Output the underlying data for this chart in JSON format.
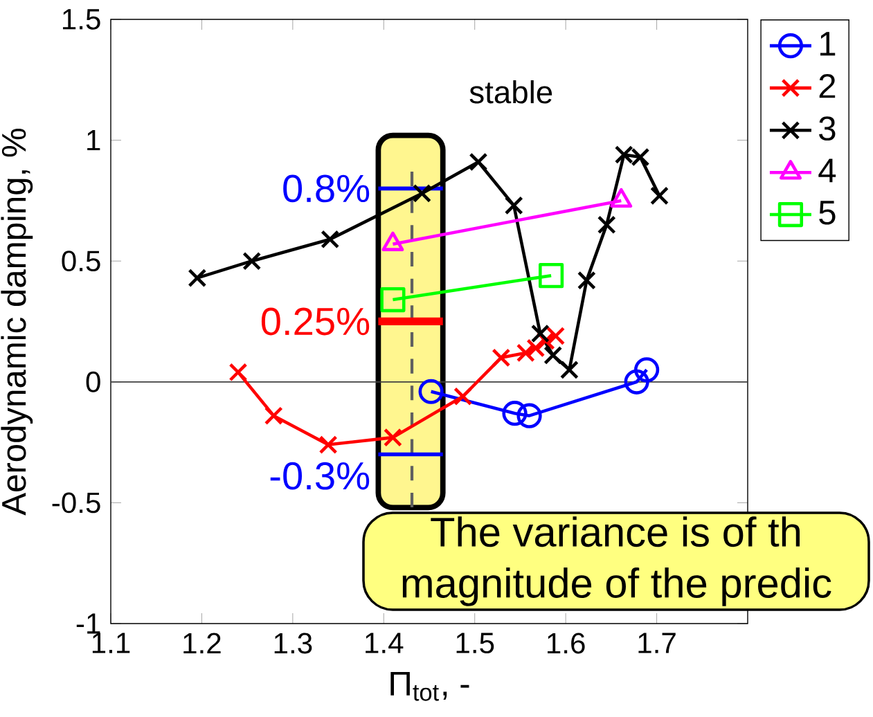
{
  "chart_data": {
    "type": "line",
    "xlabel": "Π$_{tot}$, -",
    "ylabel": "Aerodynamic damping, %",
    "xlim": [
      1.1,
      1.8
    ],
    "ylim": [
      -1,
      1.5
    ],
    "xticks": [
      1.1,
      1.2,
      1.3,
      1.4,
      1.5,
      1.6,
      1.7
    ],
    "yticks": [
      -1,
      -0.5,
      0,
      0.5,
      1,
      1.5
    ],
    "legend": "top right",
    "grid": false,
    "series": [
      {
        "name": "1",
        "color": "#0000ff",
        "marker": "circle",
        "x": [
          1.452,
          1.544,
          1.56,
          1.678,
          1.689
        ],
        "values": [
          -0.04,
          -0.13,
          -0.14,
          0.0,
          0.05
        ]
      },
      {
        "name": "2",
        "color": "#ff0000",
        "marker": "cross",
        "x": [
          1.24,
          1.279,
          1.339,
          1.41,
          1.487,
          1.529,
          1.556,
          1.567,
          1.578,
          1.589
        ],
        "values": [
          0.04,
          -0.14,
          -0.26,
          -0.23,
          -0.06,
          0.1,
          0.12,
          0.14,
          0.17,
          0.19
        ]
      },
      {
        "name": "3",
        "color": "#000000",
        "marker": "cross",
        "x": [
          1.195,
          1.255,
          1.341,
          1.442,
          1.504,
          1.543,
          1.572,
          1.586,
          1.604,
          1.623,
          1.645,
          1.664,
          1.682,
          1.703
        ],
        "values": [
          0.43,
          0.5,
          0.59,
          0.78,
          0.91,
          0.73,
          0.2,
          0.11,
          0.05,
          0.42,
          0.65,
          0.94,
          0.93,
          0.77
        ]
      },
      {
        "name": "4",
        "color": "#ff00ff",
        "marker": "triangle",
        "x": [
          1.41,
          1.661
        ],
        "values": [
          0.57,
          0.75
        ]
      },
      {
        "name": "5",
        "color": "#00ff00",
        "marker": "square",
        "x": [
          1.41,
          1.584
        ],
        "values": [
          0.34,
          0.44
        ]
      }
    ],
    "bands": [
      {
        "axis": "x",
        "from": 1.394,
        "to": 1.465,
        "color": "#fff68f"
      }
    ],
    "ref_lines": [
      {
        "axis": "y",
        "value": 0,
        "color": "#404040"
      },
      {
        "axis": "x",
        "value": 1.431,
        "color": "#606060",
        "line_style": "dashed"
      },
      {
        "axis": "y",
        "value": 0.8,
        "label": "0.8%",
        "color": "#0000ff"
      },
      {
        "axis": "y",
        "value": 0.25,
        "label": "0.25%",
        "color": "#ff0000"
      },
      {
        "axis": "y",
        "value": -0.3,
        "label": "-0.3%",
        "color": "#0000ff"
      }
    ],
    "annotations": [
      "stable",
      "The variance is of th",
      "magnitude of the predic"
    ]
  }
}
